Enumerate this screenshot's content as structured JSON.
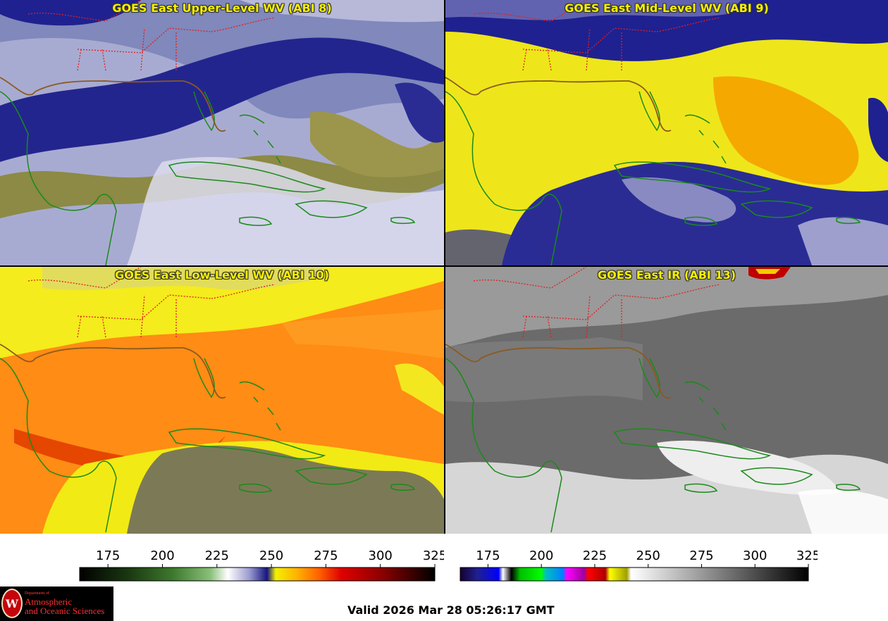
{
  "panels": [
    {
      "title": "GOES East Upper-Level WV (ABI 8)",
      "colormap": "wv_upper",
      "colors": {
        "base": "#7b80b4",
        "dark": "#1c1f86",
        "moist": "#d6d6e8",
        "dry": "#94904a"
      }
    },
    {
      "title": "GOES East Mid-Level WV (ABI 9)",
      "colormap": "wv_mid",
      "colors": {
        "base": "#f1ec1e",
        "dark": "#202090",
        "moist": "#c9c9e0",
        "dry": "#f5a400"
      }
    },
    {
      "title": "GOES East Low-Level WV (ABI 10)",
      "colormap": "wv_low",
      "colors": {
        "base": "#ff8c10",
        "dark": "#1a1a8a",
        "moist": "#f5f012",
        "dry": "#e83a00"
      }
    },
    {
      "title": "GOES East IR (ABI 13)",
      "colormap": "ir",
      "colors": {
        "base": "#6f6f6f",
        "dark": "#4c4c4c",
        "moist": "#f0f0f0",
        "dry": "#a0a0a0"
      }
    }
  ],
  "map_colors": {
    "coast": "#1a8a1a",
    "states": "#e02020",
    "us_coast": "#8a5a20"
  },
  "colorbar_left": {
    "ticks": [
      "175",
      "200",
      "225",
      "250",
      "275",
      "300",
      "325"
    ],
    "range": [
      162,
      325
    ],
    "stops": [
      {
        "v": 162,
        "c": "#000000"
      },
      {
        "v": 185,
        "c": "#1a3a12"
      },
      {
        "v": 205,
        "c": "#3e7a2e"
      },
      {
        "v": 222,
        "c": "#8ac07a"
      },
      {
        "v": 230,
        "c": "#ffffff"
      },
      {
        "v": 240,
        "c": "#9a9ad0"
      },
      {
        "v": 248,
        "c": "#151580"
      },
      {
        "v": 252,
        "c": "#f2f000"
      },
      {
        "v": 262,
        "c": "#ffb000"
      },
      {
        "v": 272,
        "c": "#ff6000"
      },
      {
        "v": 282,
        "c": "#e00000"
      },
      {
        "v": 300,
        "c": "#900000"
      },
      {
        "v": 325,
        "c": "#000000"
      }
    ]
  },
  "colorbar_right": {
    "ticks": [
      "175",
      "200",
      "225",
      "250",
      "275",
      "300",
      "325"
    ],
    "range": [
      162,
      325
    ],
    "stops": [
      {
        "v": 162,
        "c": "#150030"
      },
      {
        "v": 170,
        "c": "#202090"
      },
      {
        "v": 180,
        "c": "#0000ff"
      },
      {
        "v": 182,
        "c": "#ffffff"
      },
      {
        "v": 186,
        "c": "#000000"
      },
      {
        "v": 190,
        "c": "#00c000"
      },
      {
        "v": 200,
        "c": "#00ff00"
      },
      {
        "v": 202,
        "c": "#00c0c0"
      },
      {
        "v": 210,
        "c": "#0080ff"
      },
      {
        "v": 212,
        "c": "#ff00ff"
      },
      {
        "v": 220,
        "c": "#a000a0"
      },
      {
        "v": 222,
        "c": "#ff0000"
      },
      {
        "v": 230,
        "c": "#b00000"
      },
      {
        "v": 232,
        "c": "#ffff00"
      },
      {
        "v": 240,
        "c": "#a0a000"
      },
      {
        "v": 242,
        "c": "#ffffff"
      },
      {
        "v": 325,
        "c": "#000000"
      }
    ]
  },
  "logo": {
    "dept": "Department of",
    "line1": "Atmospheric",
    "line2": "and Oceanic Sciences",
    "seal": "W"
  },
  "valid_text": "Valid 2026 Mar 28 05:26:17 GMT"
}
